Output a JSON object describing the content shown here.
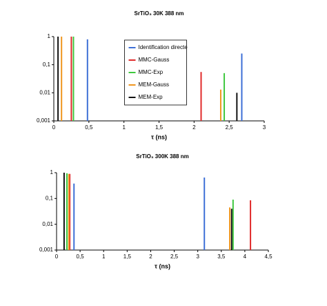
{
  "chart_data": [
    {
      "type": "stem",
      "title": "SrTiO₃ 30K 388 nm",
      "x_label": "τ (ns)",
      "xlim": [
        0,
        3
      ],
      "xticks": [
        0,
        {
          "value": 0.5,
          "label": "0,5"
        },
        1,
        {
          "value": 1.5,
          "label": "1,5"
        },
        2,
        {
          "value": 2.5,
          "label": "2,5"
        },
        3
      ],
      "ylim": [
        0.001,
        1
      ],
      "yticks": [
        {
          "value": 0.001,
          "label": "0,001"
        },
        {
          "value": 0.01,
          "label": "0,01"
        },
        {
          "value": 0.1,
          "label": "0,1"
        },
        1
      ],
      "y_scale": "log",
      "legend": "upper center",
      "series": [
        {
          "name": "Identification directe",
          "color": "#3d6fd6",
          "x": [
            0.48,
            2.68
          ],
          "values": [
            0.8,
            0.25
          ]
        },
        {
          "name": "MMC-Gauss",
          "color": "#e02a2a",
          "x": [
            0.25,
            2.1
          ],
          "values": [
            1,
            0.055
          ]
        },
        {
          "name": "MMC-Exp",
          "color": "#3ec83e",
          "x": [
            0.28,
            2.43
          ],
          "values": [
            1,
            0.05
          ]
        },
        {
          "name": "MEM-Gauss",
          "color": "#f0961e",
          "x": [
            0.11,
            2.38
          ],
          "values": [
            1,
            0.013
          ]
        },
        {
          "name": "MEM-Exp",
          "color": "#111111",
          "x": [
            0.06,
            2.61
          ],
          "values": [
            1,
            0.01
          ]
        }
      ]
    },
    {
      "type": "stem",
      "title": "SrTiO₃ 300K 388 nm",
      "x_label": "τ (ns)",
      "xlim": [
        0,
        4.5
      ],
      "xticks": [
        0,
        {
          "value": 0.5,
          "label": "0,5"
        },
        1,
        {
          "value": 1.5,
          "label": "1,5"
        },
        2,
        {
          "value": 2.5,
          "label": "2,5"
        },
        3,
        {
          "value": 3.5,
          "label": "3,5"
        },
        4,
        {
          "value": 4.5,
          "label": "4,5"
        }
      ],
      "ylim": [
        0.001,
        1
      ],
      "yticks": [
        {
          "value": 0.001,
          "label": "0,001"
        },
        {
          "value": 0.01,
          "label": "0,01"
        },
        {
          "value": 0.1,
          "label": "0,1"
        },
        1
      ],
      "y_scale": "log",
      "series": [
        {
          "color": "#3d6fd6",
          "x": [
            0.37,
            3.14
          ],
          "values": [
            0.38,
            0.65
          ]
        },
        {
          "color": "#e02a2a",
          "x": [
            0.28,
            4.12
          ],
          "values": [
            0.9,
            0.085
          ]
        },
        {
          "color": "#3ec83e",
          "x": [
            0.22,
            3.75
          ],
          "values": [
            0.95,
            0.09
          ]
        },
        {
          "color": "#f0961e",
          "x": [
            0.26,
            3.68
          ],
          "values": [
            0.9,
            0.045
          ]
        },
        {
          "color": "#111111",
          "x": [
            0.16,
            3.72
          ],
          "values": [
            1,
            0.04
          ]
        }
      ]
    }
  ]
}
